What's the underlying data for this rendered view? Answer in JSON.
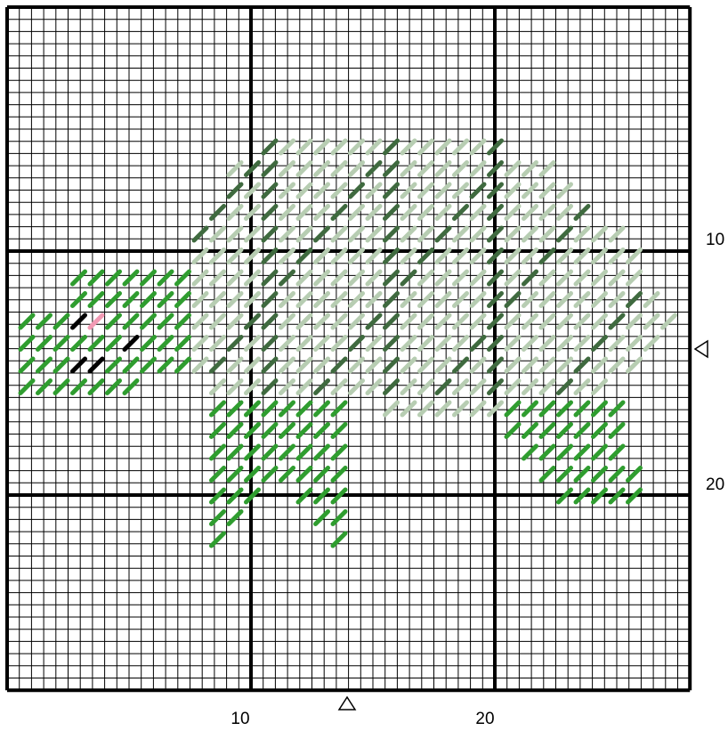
{
  "x_labels": [
    "10",
    "20"
  ],
  "y_labels": [
    "10",
    "20"
  ]
}
